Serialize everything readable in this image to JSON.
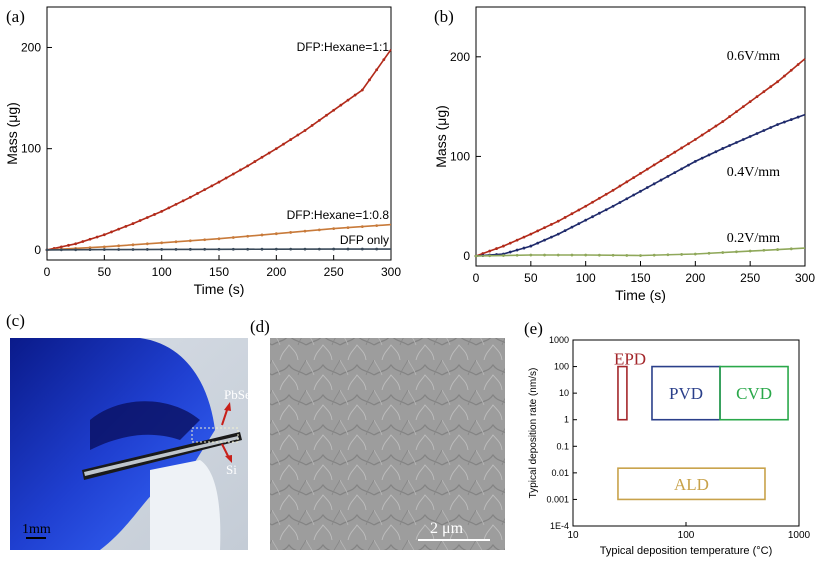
{
  "colors": {
    "red": "#b22a1a",
    "orange": "#c87a3a",
    "navy": "#1f2a6b",
    "dark": "#3a4a5a",
    "olive": "#8fa85a",
    "epd": "#a3262a",
    "pvd": "#2a3f8a",
    "cvd": "#2aa84a",
    "ald": "#c8a24a"
  },
  "chart_data": [
    {
      "panel": "(a)",
      "type": "line",
      "xlabel": "Time (s)",
      "ylabel": "Mass (μg)",
      "xlim": [
        0,
        300
      ],
      "ylim": [
        -10,
        240
      ],
      "xticks": [
        0,
        50,
        100,
        150,
        200,
        250,
        300
      ],
      "yticks": [
        0,
        100,
        200
      ],
      "series": [
        {
          "name": "DFP:Hexane=1:1",
          "color": "red",
          "x": [
            0,
            25,
            50,
            75,
            100,
            125,
            150,
            175,
            200,
            225,
            250,
            275,
            300
          ],
          "values": [
            0,
            6,
            15,
            26,
            38,
            52,
            67,
            83,
            100,
            118,
            138,
            158,
            198
          ]
        },
        {
          "name": "DFP:Hexane=1:0.8",
          "color": "orange",
          "x": [
            0,
            50,
            100,
            150,
            200,
            250,
            300
          ],
          "values": [
            0,
            3,
            7,
            11,
            16,
            21,
            25
          ]
        },
        {
          "name": "DFP only",
          "color": "dark",
          "x": [
            0,
            50,
            100,
            150,
            200,
            250,
            300
          ],
          "values": [
            0,
            0.3,
            0.5,
            0.6,
            0.7,
            0.8,
            0.8
          ]
        }
      ]
    },
    {
      "panel": "(b)",
      "type": "line",
      "xlabel": "Time (s)",
      "ylabel": "Mass (μg)",
      "xlim": [
        0,
        300
      ],
      "ylim": [
        -10,
        250
      ],
      "xticks": [
        0,
        50,
        100,
        150,
        200,
        250,
        300
      ],
      "yticks": [
        0,
        100,
        200
      ],
      "series": [
        {
          "name": "0.6V/mm",
          "color": "red",
          "x": [
            0,
            25,
            50,
            75,
            100,
            125,
            150,
            175,
            200,
            225,
            250,
            275,
            300
          ],
          "values": [
            0,
            10,
            22,
            35,
            50,
            66,
            83,
            100,
            117,
            135,
            155,
            175,
            198
          ]
        },
        {
          "name": "0.4V/mm",
          "color": "navy",
          "x": [
            0,
            25,
            50,
            75,
            100,
            125,
            150,
            175,
            200,
            225,
            250,
            275,
            300
          ],
          "values": [
            0,
            2,
            10,
            22,
            36,
            50,
            65,
            80,
            95,
            108,
            120,
            132,
            142
          ]
        },
        {
          "name": "0.2V/mm",
          "color": "olive",
          "x": [
            0,
            50,
            100,
            150,
            200,
            250,
            300
          ],
          "values": [
            0,
            1,
            1,
            0.5,
            2,
            5,
            8
          ]
        }
      ]
    },
    {
      "panel": "(e)",
      "type": "scatter",
      "xlabel": "Typical deposition temperature (°C)",
      "ylabel": "Typical deposition rate (nm/s)",
      "xscale": "log",
      "yscale": "log",
      "xlim": [
        10,
        1000
      ],
      "ylim": [
        0.0001,
        1000
      ],
      "xticks": [
        "10",
        "100",
        "1000"
      ],
      "yticks": [
        "1E-4",
        "0.001",
        "0.01",
        "0.1",
        "1",
        "10",
        "100",
        "1000"
      ],
      "regions": [
        {
          "name": "EPD",
          "color": "epd",
          "x": [
            25,
            30
          ],
          "y": [
            1,
            100
          ]
        },
        {
          "name": "PVD",
          "color": "pvd",
          "x": [
            50,
            200
          ],
          "y": [
            1,
            100
          ]
        },
        {
          "name": "CVD",
          "color": "cvd",
          "x": [
            200,
            800
          ],
          "y": [
            1,
            100
          ]
        },
        {
          "name": "ALD",
          "color": "ald",
          "x": [
            25,
            500
          ],
          "y": [
            0.001,
            0.015
          ]
        }
      ]
    }
  ],
  "panel_c": {
    "label": "(c)",
    "annotations": {
      "top": "PbSe",
      "bottom": "Si"
    },
    "scale_bar": "1mm"
  },
  "panel_d": {
    "label": "(d)",
    "scale_bar": "2 μm"
  },
  "panel_e_label": "(e)"
}
